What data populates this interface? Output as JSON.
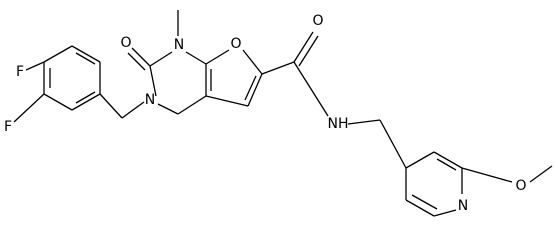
{
  "atoms": [
    {
      "label": "F"
    },
    {
      "label": "F"
    },
    {
      "label": "O"
    },
    {
      "label": "N"
    },
    {
      "label": "N"
    },
    {
      "label": "O"
    },
    {
      "label": "O"
    },
    {
      "label": "NH"
    },
    {
      "label": "N"
    },
    {
      "label": "O"
    }
  ]
}
